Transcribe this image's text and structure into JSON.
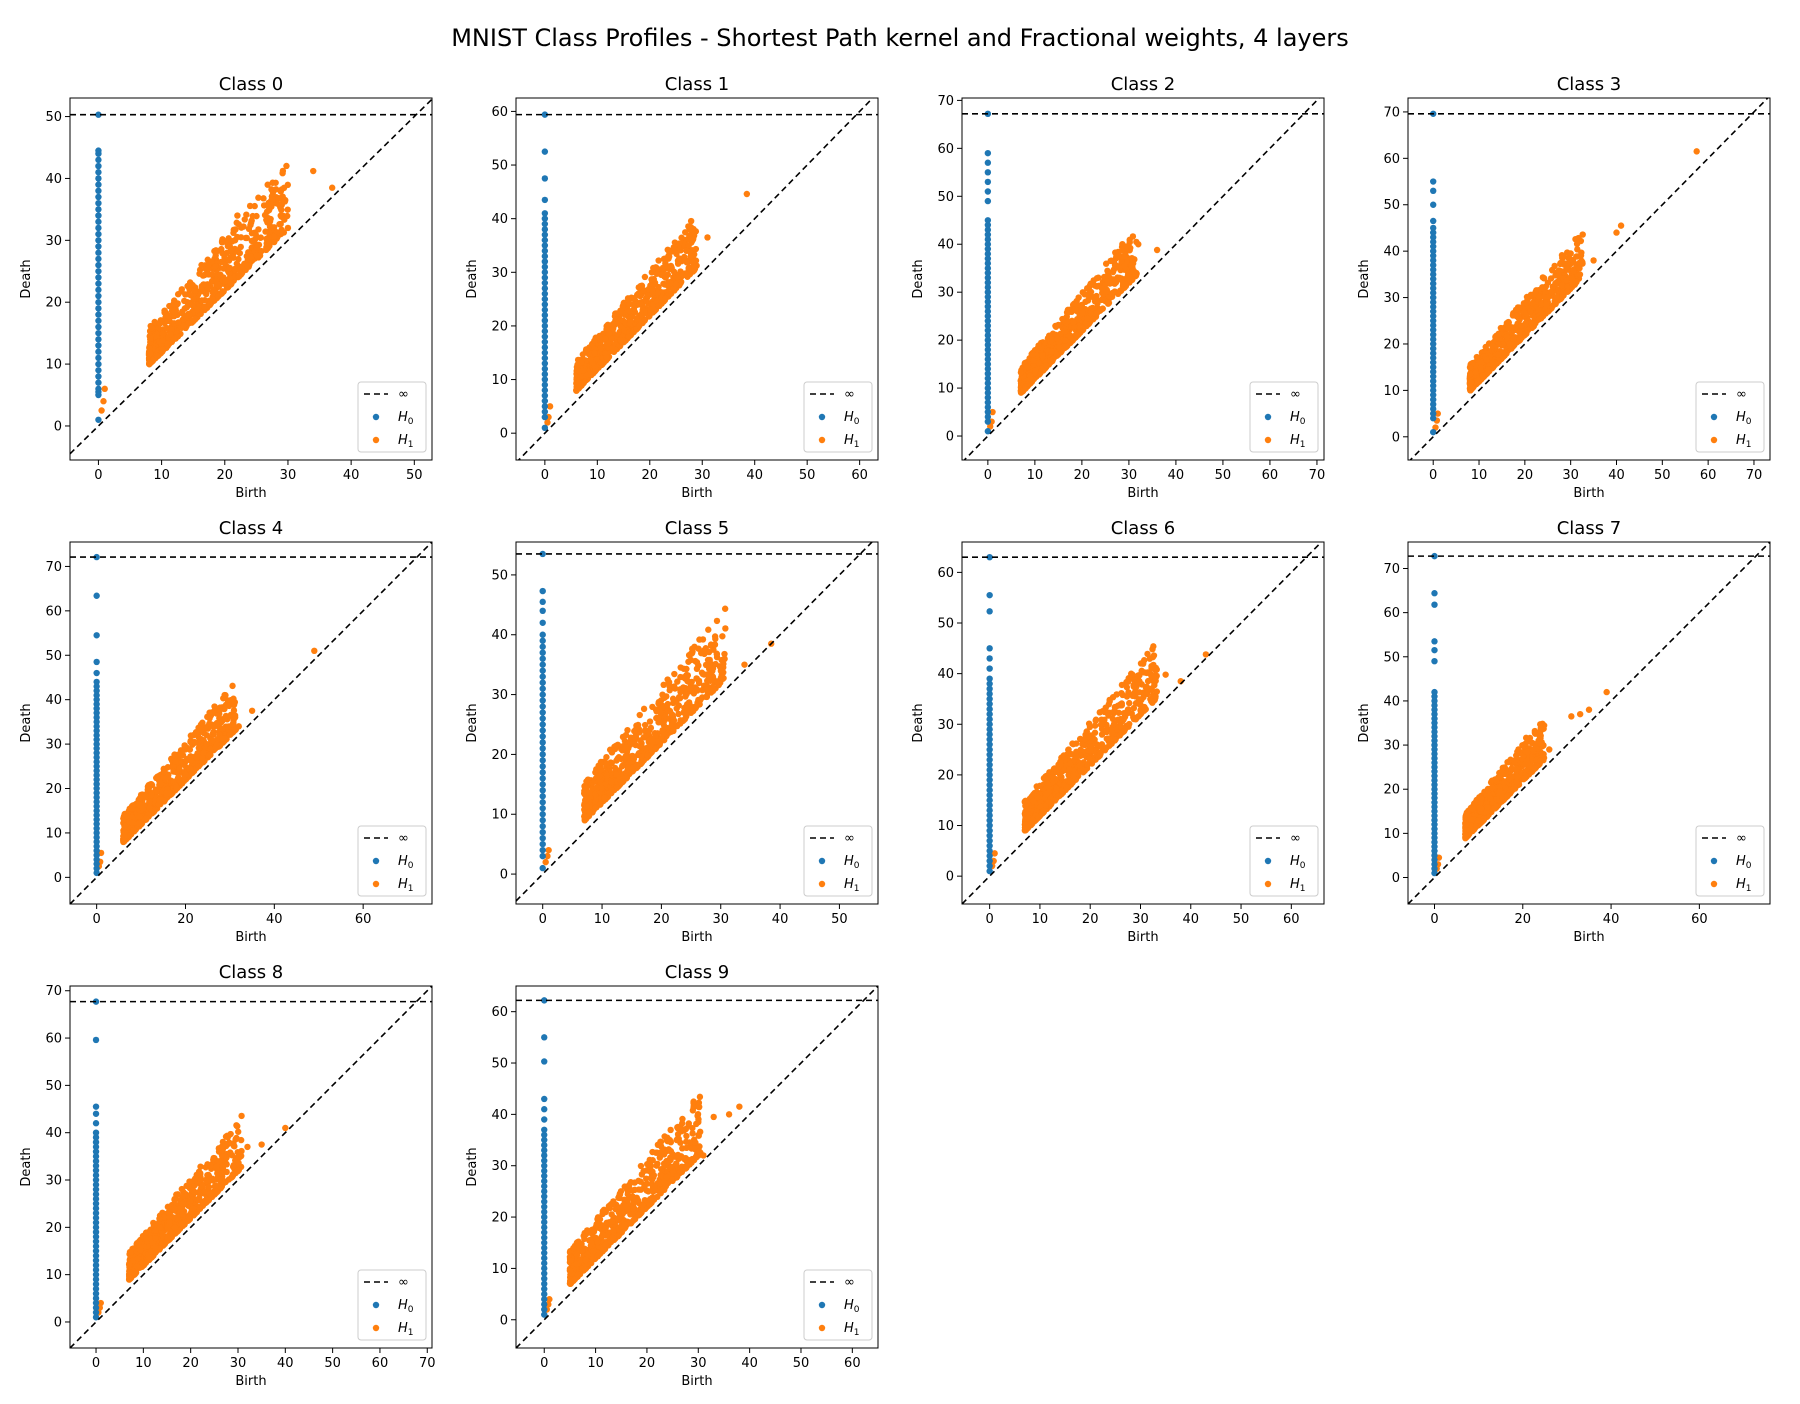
{
  "figure": {
    "title": "MNIST Class Profiles - Shortest Path kernel and Fractional weights, 4 layers",
    "colors": {
      "h0": "#1f77b4",
      "h1": "#ff7f0e",
      "line": "#000000"
    },
    "legend": {
      "inf_label": "∞",
      "h0_base": "H",
      "h0_sub": "0",
      "h1_base": "H",
      "h1_sub": "1"
    }
  },
  "chart_data": [
    {
      "type": "scatter",
      "title": "Class 0",
      "xlabel": "Birth",
      "ylabel": "Death",
      "xlim": [
        -4.5,
        52.8
      ],
      "ylim": [
        -5.5,
        53
      ],
      "xticks": [
        0,
        10,
        20,
        30,
        40,
        50
      ],
      "yticks": [
        0,
        10,
        20,
        30,
        40,
        50
      ],
      "infinity": 50.3,
      "legend": "bottom-right",
      "grid": false,
      "h0_visible": [
        1,
        5,
        5.5,
        6,
        7,
        8,
        9,
        10,
        11,
        12,
        13,
        14,
        15,
        16,
        17,
        18,
        19,
        20,
        21,
        22,
        23,
        24,
        25,
        26,
        27,
        28,
        29,
        30,
        31,
        32,
        33,
        34,
        35,
        36,
        37,
        38,
        39,
        40,
        41,
        42,
        43,
        44,
        44.5,
        50.3
      ],
      "h1_visible": [
        [
          0.5,
          2.5
        ],
        [
          0.8,
          4
        ],
        [
          1,
          6
        ],
        [
          34,
          41.2
        ],
        [
          37,
          38.5
        ],
        [
          30,
          32
        ],
        [
          22,
          34
        ],
        [
          27,
          35
        ]
      ],
      "h1_cloud": {
        "x_min": 8,
        "x_max": 34,
        "spread_above": 12
      }
    },
    {
      "type": "scatter",
      "title": "Class 1",
      "xlabel": "Birth",
      "ylabel": "Death",
      "xlim": [
        -5.5,
        63.5
      ],
      "ylim": [
        -5,
        62.5
      ],
      "xticks": [
        0,
        10,
        20,
        30,
        40,
        50,
        60
      ],
      "yticks": [
        0,
        10,
        20,
        30,
        40,
        50,
        60
      ],
      "infinity": 59.4,
      "legend": "bottom-right",
      "grid": false,
      "h0_visible": [
        1,
        3,
        4,
        5,
        6,
        7,
        8,
        9,
        10,
        11,
        12,
        13,
        14,
        15,
        16,
        17,
        18,
        19,
        20,
        21,
        22,
        23,
        24,
        25,
        26,
        27,
        28,
        29,
        30,
        31,
        32,
        33,
        34,
        35,
        36,
        37,
        38,
        39,
        40,
        41,
        43.5,
        47.5,
        52.5,
        59.4
      ],
      "h1_visible": [
        [
          0.5,
          2
        ],
        [
          0.7,
          3
        ],
        [
          1,
          5
        ],
        [
          38.5,
          44.6
        ],
        [
          31,
          36.5
        ],
        [
          27,
          34
        ]
      ],
      "h1_cloud": {
        "x_min": 6,
        "x_max": 33,
        "spread_above": 11
      }
    },
    {
      "type": "scatter",
      "title": "Class 2",
      "xlabel": "Birth",
      "ylabel": "Death",
      "xlim": [
        -5.5,
        71.5
      ],
      "ylim": [
        -5,
        70.5
      ],
      "xticks": [
        0,
        10,
        20,
        30,
        40,
        50,
        60,
        70
      ],
      "yticks": [
        0,
        10,
        20,
        30,
        40,
        50,
        60,
        70
      ],
      "infinity": 67.2,
      "legend": "bottom-right",
      "grid": false,
      "h0_visible": [
        1,
        3,
        4,
        5,
        6,
        7,
        8,
        9,
        10,
        11,
        12,
        13,
        14,
        15,
        16,
        17,
        18,
        19,
        20,
        21,
        22,
        23,
        24,
        25,
        26,
        27,
        28,
        29,
        30,
        31,
        32,
        33,
        34,
        35,
        36,
        37,
        38,
        39,
        40,
        41,
        42,
        43,
        44,
        45,
        49,
        51,
        53,
        55,
        57,
        59,
        67.2
      ],
      "h1_visible": [
        [
          0.5,
          2
        ],
        [
          0.8,
          3
        ],
        [
          1,
          5
        ],
        [
          36,
          38.8
        ],
        [
          32,
          40
        ],
        [
          31,
          34.5
        ],
        [
          28,
          33
        ]
      ],
      "h1_cloud": {
        "x_min": 7,
        "x_max": 36,
        "spread_above": 11
      }
    },
    {
      "type": "scatter",
      "title": "Class 3",
      "xlabel": "Birth",
      "ylabel": "Death",
      "xlim": [
        -5.5,
        73.5
      ],
      "ylim": [
        -5,
        73
      ],
      "xticks": [
        0,
        10,
        20,
        30,
        40,
        50,
        60,
        70
      ],
      "yticks": [
        0,
        10,
        20,
        30,
        40,
        50,
        60,
        70
      ],
      "infinity": 69.6,
      "legend": "bottom-right",
      "grid": false,
      "h0_visible": [
        1,
        4,
        5,
        6,
        7,
        8,
        9,
        10,
        11,
        12,
        13,
        14,
        15,
        16,
        17,
        18,
        19,
        20,
        21,
        22,
        23,
        24,
        25,
        26,
        27,
        28,
        29,
        30,
        31,
        32,
        33,
        34,
        35,
        36,
        37,
        38,
        39,
        40,
        41,
        42,
        43,
        44,
        45,
        46.5,
        50,
        53,
        55,
        69.6
      ],
      "h1_visible": [
        [
          0.5,
          2
        ],
        [
          0.8,
          3.5
        ],
        [
          1,
          5
        ],
        [
          57.5,
          61.5
        ],
        [
          41,
          45.5
        ],
        [
          40,
          44
        ],
        [
          35,
          38
        ],
        [
          30,
          39.5
        ]
      ],
      "h1_cloud": {
        "x_min": 8,
        "x_max": 37,
        "spread_above": 11
      }
    },
    {
      "type": "scatter",
      "title": "Class 4",
      "xlabel": "Birth",
      "ylabel": "Death",
      "xlim": [
        -6,
        75.5
      ],
      "ylim": [
        -6,
        75.5
      ],
      "xticks": [
        0,
        20,
        40,
        60
      ],
      "yticks": [
        0,
        10,
        20,
        30,
        40,
        50,
        60,
        70
      ],
      "infinity": 72.1,
      "legend": "bottom-right",
      "grid": false,
      "h0_visible": [
        1,
        2,
        3,
        4,
        5,
        6,
        7,
        8,
        9,
        10,
        11,
        12,
        13,
        14,
        15,
        16,
        17,
        18,
        19,
        20,
        21,
        22,
        23,
        24,
        25,
        26,
        27,
        28,
        29,
        30,
        31,
        32,
        33,
        34,
        35,
        36,
        37,
        38,
        39,
        40,
        41,
        42,
        43,
        44,
        46,
        48.5,
        54.5,
        63.4,
        72.1
      ],
      "h1_visible": [
        [
          0.5,
          2.5
        ],
        [
          0.8,
          3.5
        ],
        [
          1,
          5.5
        ],
        [
          49,
          51
        ],
        [
          29,
          41
        ],
        [
          35,
          37.5
        ],
        [
          32,
          34
        ]
      ],
      "h1_cloud": {
        "x_min": 6,
        "x_max": 36,
        "spread_above": 12
      }
    },
    {
      "type": "scatter",
      "title": "Class 5",
      "xlabel": "Birth",
      "ylabel": "Death",
      "xlim": [
        -4.5,
        56.5
      ],
      "ylim": [
        -5,
        55.5
      ],
      "xticks": [
        0,
        10,
        20,
        30,
        40,
        50
      ],
      "yticks": [
        0,
        10,
        20,
        30,
        40,
        50
      ],
      "infinity": 53.5,
      "legend": "bottom-right",
      "grid": false,
      "h0_visible": [
        1,
        3,
        4,
        5,
        6,
        7,
        8,
        9,
        10,
        11,
        12,
        13,
        14,
        15,
        16,
        17,
        18,
        19,
        20,
        21,
        22,
        23,
        24,
        25,
        26,
        27,
        28,
        29,
        30,
        31,
        32,
        33,
        34,
        35,
        36,
        37,
        38,
        39,
        40,
        42,
        44,
        45.5,
        47.3,
        53.5
      ],
      "h1_visible": [
        [
          0.5,
          2
        ],
        [
          0.8,
          3
        ],
        [
          1,
          4
        ],
        [
          38.5,
          38.5
        ],
        [
          34,
          35
        ],
        [
          28,
          33
        ]
      ],
      "h1_cloud": {
        "x_min": 7,
        "x_max": 35,
        "spread_above": 13
      }
    },
    {
      "type": "scatter",
      "title": "Class 6",
      "xlabel": "Birth",
      "ylabel": "Death",
      "xlim": [
        -5.5,
        66.5
      ],
      "ylim": [
        -5.5,
        66
      ],
      "xticks": [
        0,
        10,
        20,
        30,
        40,
        50,
        60
      ],
      "yticks": [
        0,
        10,
        20,
        30,
        40,
        50,
        60
      ],
      "infinity": 63,
      "legend": "bottom-right",
      "grid": false,
      "h0_visible": [
        1,
        2,
        3,
        4,
        5,
        6,
        7,
        8,
        9,
        10,
        11,
        12,
        13,
        14,
        15,
        16,
        17,
        18,
        19,
        20,
        21,
        22,
        23,
        24,
        25,
        26,
        27,
        28,
        29,
        30,
        31,
        32,
        33,
        34,
        35,
        36,
        37,
        38,
        39,
        41,
        43,
        45,
        52.3,
        55.5,
        63
      ],
      "h1_visible": [
        [
          0.5,
          2
        ],
        [
          0.8,
          3
        ],
        [
          1,
          4.5
        ],
        [
          43,
          43.8
        ],
        [
          35,
          39.8
        ],
        [
          38,
          38.5
        ],
        [
          29,
          35.5
        ]
      ],
      "h1_cloud": {
        "x_min": 7,
        "x_max": 38,
        "spread_above": 12
      }
    },
    {
      "type": "scatter",
      "title": "Class 7",
      "xlabel": "Birth",
      "ylabel": "Death",
      "xlim": [
        -6,
        76
      ],
      "ylim": [
        -6,
        76
      ],
      "xticks": [
        0,
        20,
        40,
        60
      ],
      "yticks": [
        0,
        10,
        20,
        30,
        40,
        50,
        60,
        70
      ],
      "infinity": 72.8,
      "legend": "bottom-right",
      "grid": false,
      "h0_visible": [
        1,
        2,
        3,
        4,
        5,
        6,
        7,
        8,
        9,
        10,
        11,
        12,
        13,
        14,
        15,
        16,
        17,
        18,
        19,
        20,
        21,
        22,
        23,
        24,
        25,
        26,
        27,
        28,
        29,
        30,
        31,
        32,
        33,
        34,
        35,
        36,
        37,
        38,
        39,
        40,
        41,
        42,
        49,
        51.5,
        53.5,
        61.8,
        64.4,
        72.8
      ],
      "h1_visible": [
        [
          0.5,
          2
        ],
        [
          0.8,
          3
        ],
        [
          1,
          4.5
        ],
        [
          39,
          42
        ],
        [
          35,
          38
        ],
        [
          33,
          37
        ],
        [
          31,
          36.5
        ],
        [
          26,
          29
        ]
      ],
      "h1_cloud": {
        "x_min": 7,
        "x_max": 28,
        "spread_above": 11
      }
    },
    {
      "type": "scatter",
      "title": "Class 8",
      "xlabel": "Birth",
      "ylabel": "Death",
      "xlim": [
        -5.5,
        71
      ],
      "ylim": [
        -5.5,
        71
      ],
      "xticks": [
        0,
        10,
        20,
        30,
        40,
        50,
        60,
        70
      ],
      "yticks": [
        0,
        10,
        20,
        30,
        40,
        50,
        60,
        70
      ],
      "infinity": 67.7,
      "legend": "bottom-right",
      "grid": false,
      "h0_visible": [
        1,
        2,
        3,
        4,
        5,
        6,
        7,
        8,
        9,
        10,
        11,
        12,
        13,
        14,
        15,
        16,
        17,
        18,
        19,
        20,
        21,
        22,
        23,
        24,
        25,
        26,
        27,
        28,
        29,
        30,
        31,
        32,
        33,
        34,
        35,
        36,
        37,
        38,
        39,
        40,
        42,
        44,
        45.5,
        59.6,
        67.7
      ],
      "h1_visible": [
        [
          0.5,
          2
        ],
        [
          0.8,
          3
        ],
        [
          1,
          4
        ],
        [
          40,
          41
        ],
        [
          35,
          37.5
        ],
        [
          32,
          37
        ],
        [
          26,
          36
        ],
        [
          30,
          32
        ]
      ],
      "h1_cloud": {
        "x_min": 7,
        "x_max": 35,
        "spread_above": 12
      }
    },
    {
      "type": "scatter",
      "title": "Class 9",
      "xlabel": "Birth",
      "ylabel": "Death",
      "xlim": [
        -5.5,
        65
      ],
      "ylim": [
        -5.5,
        65
      ],
      "xticks": [
        0,
        10,
        20,
        30,
        40,
        50,
        60
      ],
      "yticks": [
        0,
        10,
        20,
        30,
        40,
        50,
        60
      ],
      "infinity": 62.2,
      "legend": "bottom-right",
      "grid": false,
      "h0_visible": [
        1,
        2,
        3,
        4,
        5,
        6,
        7,
        8,
        9,
        10,
        11,
        12,
        13,
        14,
        15,
        16,
        17,
        18,
        19,
        20,
        21,
        22,
        23,
        24,
        25,
        26,
        27,
        28,
        29,
        30,
        31,
        32,
        33,
        34,
        35,
        36,
        37,
        39,
        41,
        43,
        50.3,
        55,
        62.2
      ],
      "h1_visible": [
        [
          0.5,
          2
        ],
        [
          0.8,
          3
        ],
        [
          1,
          4
        ],
        [
          38,
          41.5
        ],
        [
          36,
          40
        ],
        [
          33,
          39.5
        ],
        [
          30,
          38.5
        ],
        [
          31,
          32
        ]
      ],
      "h1_cloud": {
        "x_min": 5,
        "x_max": 35,
        "spread_above": 13
      }
    }
  ]
}
